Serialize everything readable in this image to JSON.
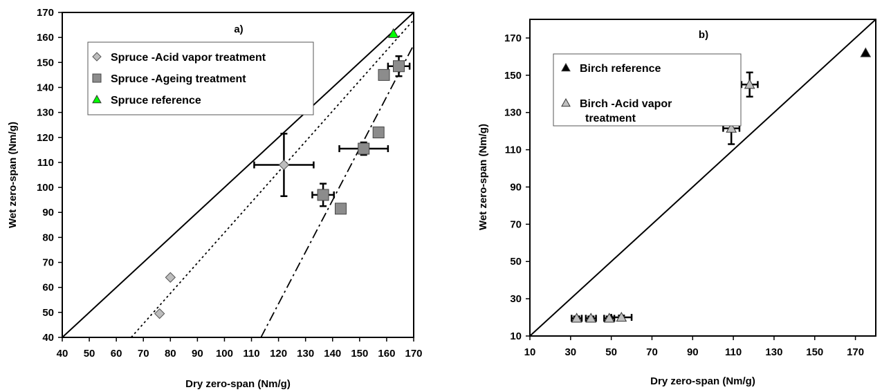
{
  "chart_data": [
    {
      "type": "scatter",
      "panel_label": "a)",
      "xlabel": "Dry zero-span (Nm/g)",
      "ylabel": "Wet zero-span (Nm/g)",
      "xlim": [
        40,
        170
      ],
      "ylim": [
        40,
        170
      ],
      "xticks": [
        40,
        50,
        60,
        70,
        80,
        90,
        100,
        110,
        120,
        130,
        140,
        150,
        160,
        170
      ],
      "yticks": [
        40,
        50,
        60,
        70,
        80,
        90,
        100,
        110,
        120,
        130,
        140,
        150,
        160,
        170
      ],
      "grid": false,
      "legend_position": "top-left",
      "series": [
        {
          "name": "Spruce -Acid vapor treatment",
          "marker": "diamond",
          "color": "#bdbdbd",
          "points": [
            {
              "x": 76,
              "y": 49.5
            },
            {
              "x": 80,
              "y": 64
            },
            {
              "x": 122,
              "y": 109,
              "xerr": 11,
              "yerr": 12.5
            }
          ]
        },
        {
          "name": "Spruce -Ageing treatment",
          "marker": "square",
          "color": "#8c8c8c",
          "points": [
            {
              "x": 136.5,
              "y": 97,
              "xerr": 4,
              "yerr": 4.5
            },
            {
              "x": 143,
              "y": 91.5
            },
            {
              "x": 151.5,
              "y": 115.5,
              "xerr": 9,
              "yerr": 2.5
            },
            {
              "x": 157,
              "y": 122
            },
            {
              "x": 159,
              "y": 145
            },
            {
              "x": 164.5,
              "y": 148.5,
              "xerr": 4,
              "yerr": 4
            }
          ]
        },
        {
          "name": "Spruce reference",
          "marker": "triangle",
          "color": "#00ff00",
          "points": [
            {
              "x": 162.5,
              "y": 161.5
            }
          ]
        }
      ],
      "lines": [
        {
          "style": "solid",
          "from": [
            40,
            40
          ],
          "to": [
            170,
            170
          ]
        },
        {
          "style": "dotted",
          "from": [
            65.5,
            40
          ],
          "to": [
            170,
            167
          ]
        },
        {
          "style": "dashdot",
          "from": [
            113.5,
            40
          ],
          "to": [
            170,
            157
          ]
        }
      ]
    },
    {
      "type": "scatter",
      "panel_label": "b)",
      "xlabel": "Dry zero-span (Nm/g)",
      "ylabel": "Wet zero-span (Nm/g)",
      "xlim": [
        10,
        180
      ],
      "ylim": [
        10,
        180
      ],
      "xticks": [
        10,
        30,
        50,
        70,
        90,
        110,
        130,
        150,
        170
      ],
      "yticks": [
        10,
        30,
        50,
        70,
        90,
        110,
        130,
        150,
        170
      ],
      "grid": false,
      "legend_position": "top-left",
      "series": [
        {
          "name": "Birch reference",
          "marker": "triangle",
          "color": "#000000",
          "points": [
            {
              "x": 175,
              "y": 162
            }
          ]
        },
        {
          "name": "Birch -Acid vapor treatment",
          "name_lines": [
            "Birch -Acid vapor",
            "treatment"
          ],
          "marker": "triangle",
          "color": "#c0c0c0",
          "points": [
            {
              "x": 33,
              "y": 19.5,
              "xerr": 2.5,
              "yerr": 1
            },
            {
              "x": 40,
              "y": 19.5,
              "xerr": 2.5,
              "yerr": 1
            },
            {
              "x": 49,
              "y": 19.5,
              "xerr": 2.5,
              "yerr": 1
            },
            {
              "x": 55,
              "y": 20,
              "xerr": 5,
              "yerr": 1
            },
            {
              "x": 109,
              "y": 121.5,
              "xerr": 4,
              "yerr": 8.5
            },
            {
              "x": 118,
              "y": 145,
              "xerr": 4,
              "yerr": 6.5
            }
          ]
        }
      ],
      "lines": [
        {
          "style": "solid",
          "from": [
            10,
            10
          ],
          "to": [
            180,
            180
          ]
        }
      ]
    }
  ]
}
